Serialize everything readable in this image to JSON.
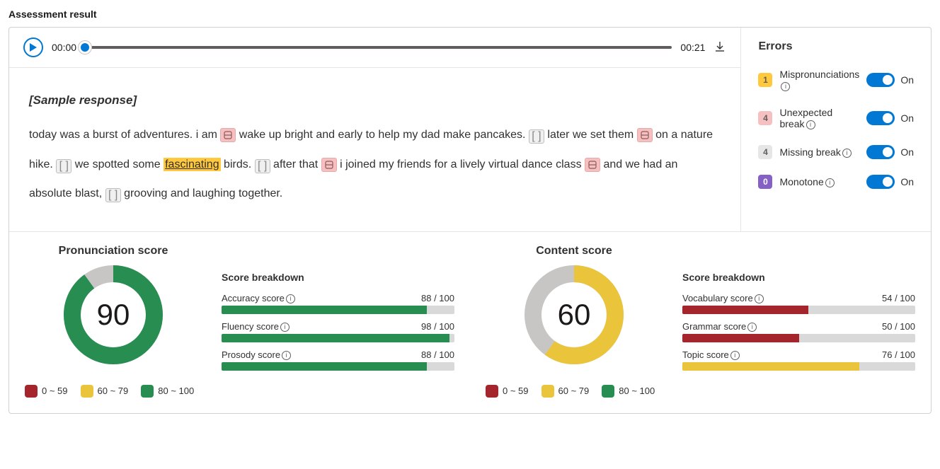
{
  "title": "Assessment result",
  "player": {
    "current": "00:00",
    "total": "00:21"
  },
  "errors": {
    "title": "Errors",
    "toggle_on": "On",
    "items": [
      {
        "count": "1",
        "label": "Mispronunciations",
        "badge_bg": "#ffc83d",
        "badge_fg": "#605e5c"
      },
      {
        "count": "4",
        "label": "Unexpected break",
        "badge_bg": "#f7c0c0",
        "badge_fg": "#605e5c"
      },
      {
        "count": "4",
        "label": "Missing break",
        "badge_bg": "#e6e6e6",
        "badge_fg": "#605e5c"
      },
      {
        "count": "0",
        "label": "Monotone",
        "badge_bg": "#8661c5",
        "badge_fg": "#ffffff"
      }
    ]
  },
  "response": {
    "header": "[Sample response]",
    "segments": [
      {
        "t": "text",
        "v": "today was a burst of adventures. i am "
      },
      {
        "t": "unexp"
      },
      {
        "t": "text",
        "v": " wake up bright and early to help my dad make pancakes. "
      },
      {
        "t": "miss"
      },
      {
        "t": "text",
        "v": " later we set them "
      },
      {
        "t": "unexp"
      },
      {
        "t": "text",
        "v": " on a nature hike. "
      },
      {
        "t": "miss"
      },
      {
        "t": "text",
        "v": " we spotted some "
      },
      {
        "t": "mispron",
        "v": "fascinating"
      },
      {
        "t": "text",
        "v": " birds. "
      },
      {
        "t": "miss"
      },
      {
        "t": "text",
        "v": " after that "
      },
      {
        "t": "unexp"
      },
      {
        "t": "text",
        "v": " i joined my friends for a lively virtual dance class "
      },
      {
        "t": "unexp"
      },
      {
        "t": "text",
        "v": " and we had an absolute blast, "
      },
      {
        "t": "miss"
      },
      {
        "t": "text",
        "v": " grooving and laughing together."
      }
    ]
  },
  "colors": {
    "red": "#a4262c",
    "yellow": "#eac53b",
    "green": "#278d51",
    "gray": "#c8c6c4",
    "track": "#d9d9d9"
  },
  "legend": [
    {
      "label": "0 ~ 59"
    },
    {
      "label": "60 ~ 79"
    },
    {
      "label": "80 ~ 100"
    }
  ],
  "scores": [
    {
      "title": "Pronunciation score",
      "value": 90,
      "color_key": "green",
      "breakdown_title": "Score breakdown",
      "bars": [
        {
          "label": "Accuracy score",
          "value": 88,
          "max": 100,
          "color_key": "green"
        },
        {
          "label": "Fluency score",
          "value": 98,
          "max": 100,
          "color_key": "green"
        },
        {
          "label": "Prosody score",
          "value": 88,
          "max": 100,
          "color_key": "green"
        }
      ]
    },
    {
      "title": "Content score",
      "value": 60,
      "color_key": "yellow",
      "breakdown_title": "Score breakdown",
      "bars": [
        {
          "label": "Vocabulary score",
          "value": 54,
          "max": 100,
          "color_key": "red"
        },
        {
          "label": "Grammar score",
          "value": 50,
          "max": 100,
          "color_key": "red"
        },
        {
          "label": "Topic score",
          "value": 76,
          "max": 100,
          "color_key": "yellow"
        }
      ]
    }
  ]
}
